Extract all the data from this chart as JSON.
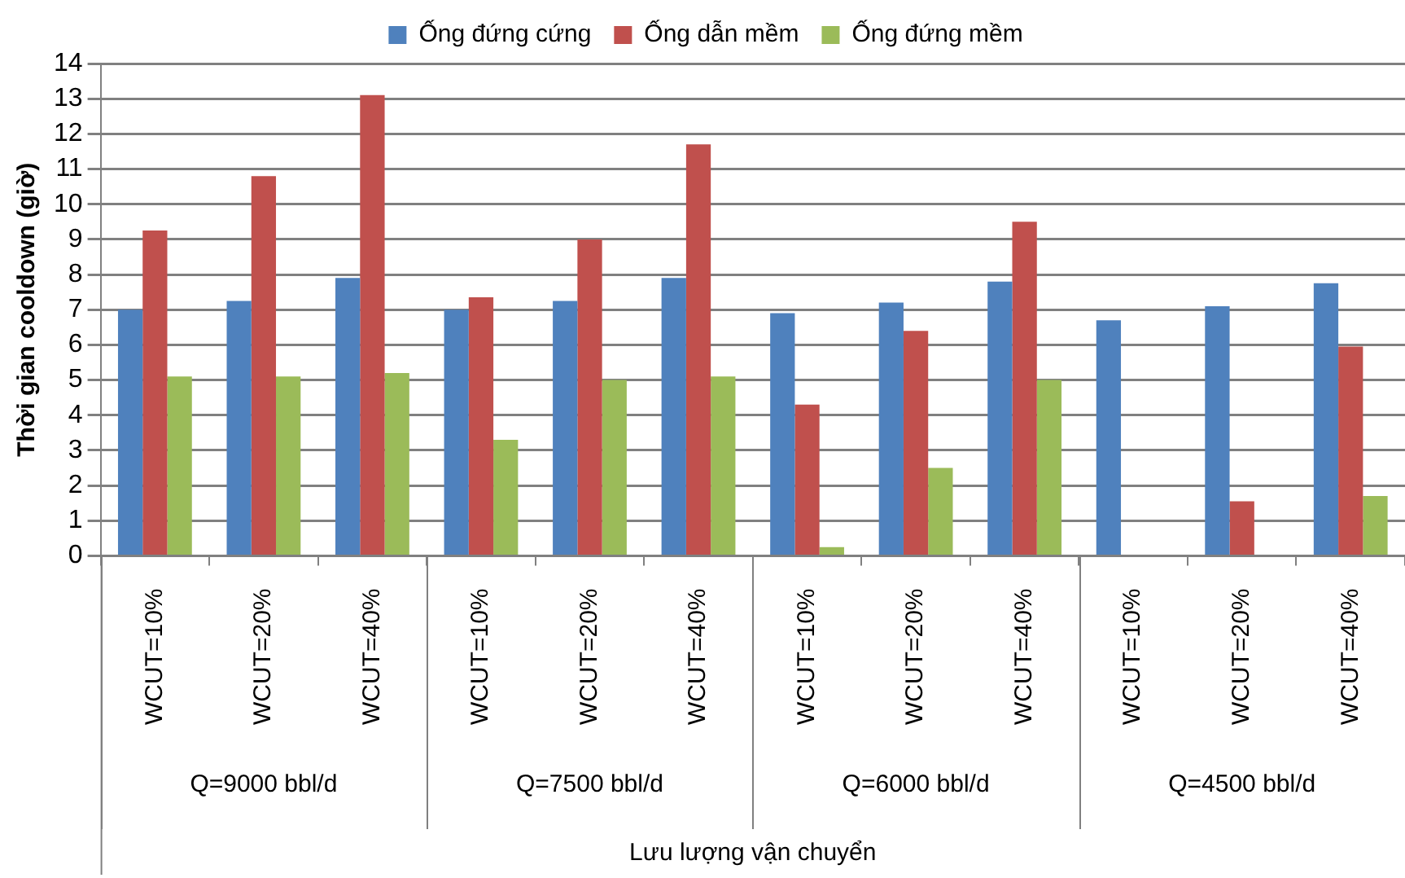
{
  "chart_data": {
    "type": "bar",
    "ylabel": "Thời gian cooldown (giờ)",
    "xlabel": "Lưu lượng vận chuyển",
    "categories": [
      "WCUT=10%",
      "WCUT=20%",
      "WCUT=40%",
      "WCUT=10%",
      "WCUT=20%",
      "WCUT=40%",
      "WCUT=10%",
      "WCUT=20%",
      "WCUT=40%",
      "WCUT=10%",
      "WCUT=20%",
      "WCUT=40%"
    ],
    "series": [
      {
        "name": "Ống đứng cứng",
        "color": "#4f81bd",
        "values": [
          7.0,
          7.25,
          7.9,
          7.0,
          7.25,
          7.9,
          6.9,
          7.2,
          7.8,
          6.7,
          7.1,
          7.75
        ]
      },
      {
        "name": "Ống dẫn mềm",
        "color": "#c0504d",
        "values": [
          9.25,
          10.8,
          13.1,
          7.35,
          9.0,
          11.7,
          4.3,
          6.4,
          9.5,
          null,
          1.55,
          5.95
        ]
      },
      {
        "name": "Ống đứng mềm",
        "color": "#9bbb59",
        "values": [
          5.1,
          5.1,
          5.2,
          3.3,
          5.0,
          5.1,
          0.25,
          2.5,
          5.0,
          null,
          null,
          1.7
        ]
      }
    ],
    "annotations": [
      "Q=9000 bbl/d",
      "Q=7500 bbl/d",
      "Q=6000 bbl/d",
      "Q=4500 bbl/d"
    ],
    "ylim": [
      0,
      14
    ],
    "yticks": [
      0,
      1,
      2,
      3,
      4,
      5,
      6,
      7,
      8,
      9,
      10,
      11,
      12,
      13,
      14
    ],
    "grid": "y",
    "legend": "top"
  }
}
